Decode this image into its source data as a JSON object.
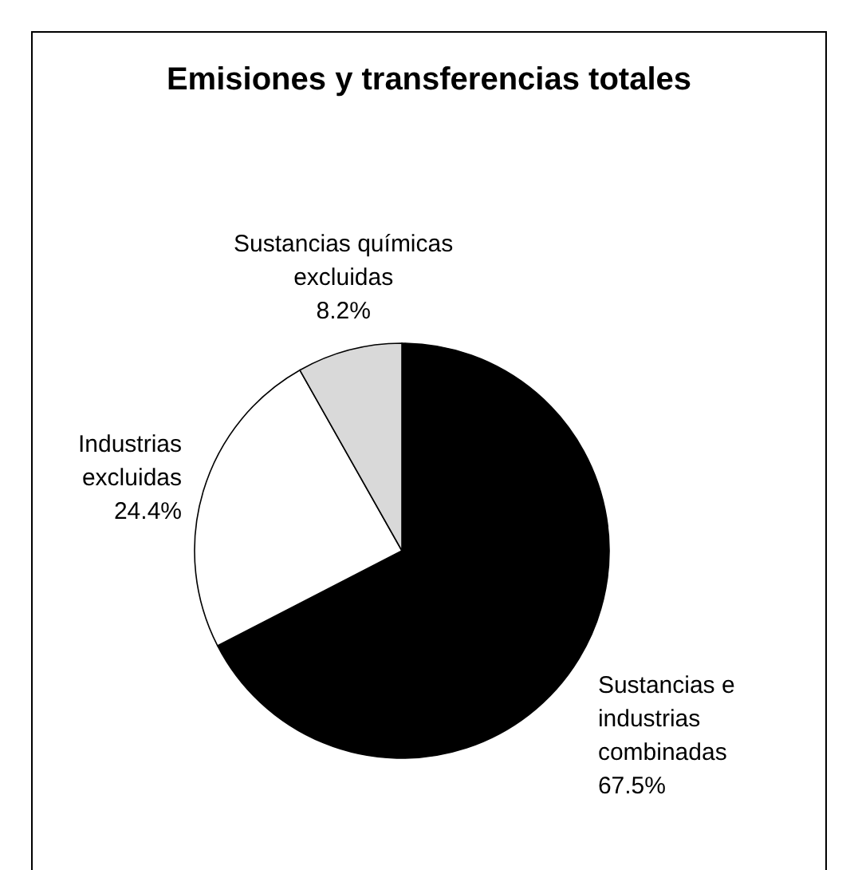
{
  "chart_data": {
    "type": "pie",
    "title": "Emisiones y transferencias totales",
    "categories": [
      "Sustancias e\nindustrias\ncombinadas",
      "Industrias\nexcluidas",
      "Sustancias químicas\nexcluidas"
    ],
    "values": [
      67.5,
      24.4,
      8.2
    ],
    "colors": [
      "#000000",
      "#ffffff",
      "#d9d9d9"
    ],
    "value_labels": [
      "67.5%",
      "24.4%",
      "8.2%"
    ]
  }
}
